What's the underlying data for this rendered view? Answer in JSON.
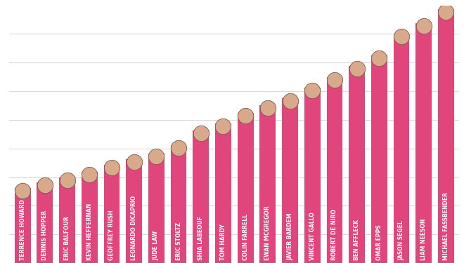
{
  "chart_data": {
    "type": "bar",
    "categories": [
      "TERRENCE HOWARD",
      "DENNIS HOPPER",
      "ERIC BALFOUR",
      "KEVIN HEFFERNAN",
      "GEOFFREY RUSH",
      "LEONARDO DICAPRIO",
      "JUDE LAW",
      "ERIC STOLTZ",
      "SHIA LABEOUF",
      "TOM HARDY",
      "COLIN FARRELL",
      "EWAN MCGREGOR",
      "JAVIER BARDEM",
      "VINCENT GALLO",
      "ROBERT DE NIRO",
      "BEN AFFLECK",
      "OMAR EPPS",
      "JASON SEGEL",
      "LIAM NEESON",
      "MICHAEL FASSBENDER"
    ],
    "values": [
      105,
      113,
      120,
      127,
      137,
      145,
      153,
      165,
      185,
      195,
      210,
      220,
      230,
      245,
      260,
      275,
      290,
      320,
      335,
      355
    ],
    "color": "#e0457b",
    "ylim": [
      0,
      360
    ],
    "yticks": [
      0,
      40,
      80,
      120,
      160,
      200,
      240,
      280,
      320,
      360
    ],
    "grid": true,
    "tick_labels": false
  }
}
